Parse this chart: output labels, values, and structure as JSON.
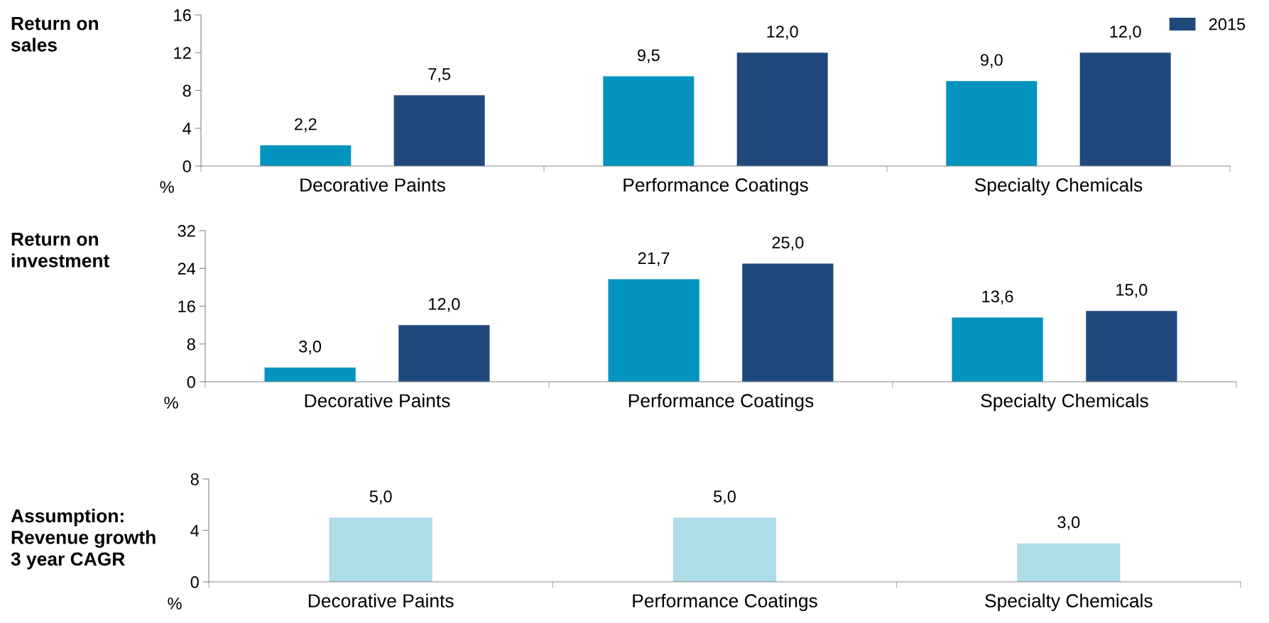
{
  "chart_data": [
    {
      "type": "bar",
      "title": "Return on\nsales",
      "ylabel": "%",
      "categories": [
        "Decorative Paints",
        "Performance Coatings",
        "Specialty Chemicals"
      ],
      "series": [
        {
          "color": "#0394c0",
          "values": [
            2.2,
            9.5,
            9.0
          ],
          "value_labels": [
            "2,2",
            "9,5",
            "9,0"
          ]
        },
        {
          "name": "2015",
          "color": "#1f497d",
          "values": [
            7.5,
            12.0,
            12.0
          ],
          "value_labels": [
            "7,5",
            "12,0",
            "12,0"
          ]
        }
      ],
      "ylim": [
        0,
        16
      ],
      "yticks": [
        0,
        4,
        8,
        12,
        16
      ],
      "legend": "top right",
      "grid": false
    },
    {
      "type": "bar",
      "title": "Return on\ninvestment",
      "ylabel": "%",
      "categories": [
        "Decorative Paints",
        "Performance Coatings",
        "Specialty Chemicals"
      ],
      "series": [
        {
          "color": "#0394c0",
          "values": [
            3.0,
            21.7,
            13.6
          ],
          "value_labels": [
            "3,0",
            "21,7",
            "13,6"
          ]
        },
        {
          "color": "#1f497d",
          "values": [
            12.0,
            25.0,
            15.0
          ],
          "value_labels": [
            "12,0",
            "25,0",
            "15,0"
          ]
        }
      ],
      "ylim": [
        0,
        32
      ],
      "yticks": [
        0,
        8,
        16,
        24,
        32
      ],
      "grid": false
    },
    {
      "type": "bar",
      "title": "Assumption:\nRevenue growth\n3 year CAGR",
      "ylabel": "%",
      "categories": [
        "Decorative Paints",
        "Performance Coatings",
        "Specialty Chemicals"
      ],
      "series": [
        {
          "color": "#addde7",
          "values": [
            5.0,
            5.0,
            3.0
          ],
          "value_labels": [
            "5,0",
            "5,0",
            "3,0"
          ]
        }
      ],
      "ylim": [
        0,
        8
      ],
      "yticks": [
        0,
        4,
        8
      ],
      "grid": false
    }
  ]
}
